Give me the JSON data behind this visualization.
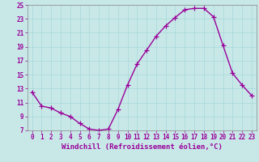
{
  "x": [
    0,
    1,
    2,
    3,
    4,
    5,
    6,
    7,
    8,
    9,
    10,
    11,
    12,
    13,
    14,
    15,
    16,
    17,
    18,
    19,
    20,
    21,
    22,
    23
  ],
  "y": [
    12.5,
    10.5,
    10.2,
    9.5,
    9.0,
    8.0,
    7.2,
    7.0,
    7.2,
    10.0,
    13.5,
    16.5,
    18.5,
    20.5,
    22.0,
    23.2,
    24.3,
    24.5,
    24.5,
    23.3,
    19.2,
    15.2,
    13.5,
    12.0
  ],
  "line_color": "#990099",
  "marker": "+",
  "marker_size": 4,
  "linewidth": 1.0,
  "xlabel": "Windchill (Refroidissement éolien,°C)",
  "xlabel_fontsize": 6.5,
  "ylim": [
    7,
    25
  ],
  "xlim": [
    -0.5,
    23.5
  ],
  "yticks": [
    7,
    9,
    11,
    13,
    15,
    17,
    19,
    21,
    23,
    25
  ],
  "xticks": [
    0,
    1,
    2,
    3,
    4,
    5,
    6,
    7,
    8,
    9,
    10,
    11,
    12,
    13,
    14,
    15,
    16,
    17,
    18,
    19,
    20,
    21,
    22,
    23
  ],
  "tick_fontsize": 5.5,
  "grid_color": "#a8d8d8",
  "bg_color": "#c8e8e8",
  "fig_color": "#c8e8e8",
  "spine_color": "#888888"
}
